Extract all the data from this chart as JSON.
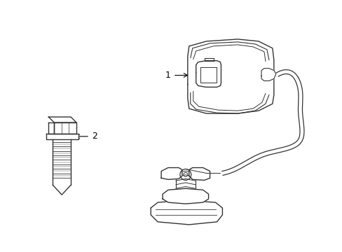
{
  "background_color": "#ffffff",
  "line_color": "#333333",
  "label_color": "#000000",
  "figsize": [
    4.89,
    3.6
  ],
  "dpi": 100,
  "label1_text": "1",
  "label2_text": "2"
}
